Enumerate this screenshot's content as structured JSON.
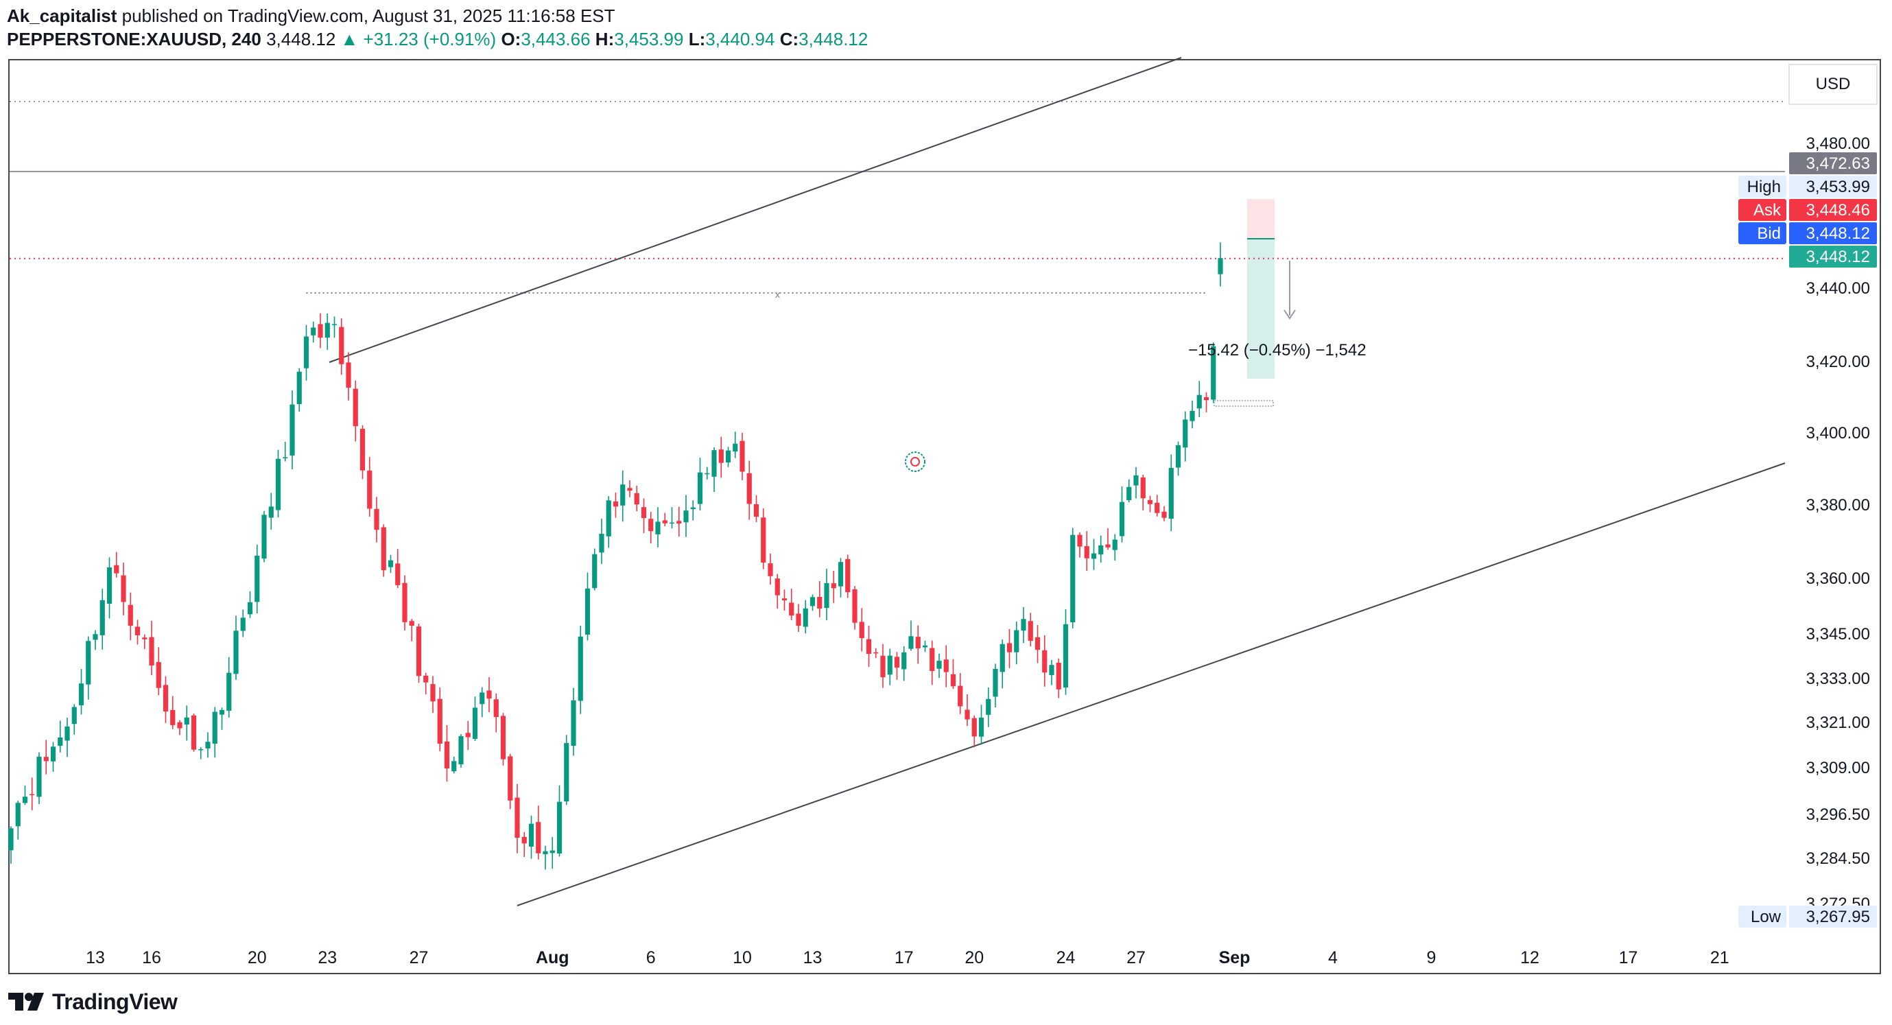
{
  "header": {
    "author": "Ak_capitalist",
    "published_text": "published on TradingView.com, August 31, 2025 11:16:58 EST",
    "symbol": "PEPPERSTONE:XAUUSD, 240",
    "last": "3,448.12",
    "change_arrow": "▲",
    "change": "+31.23 (+0.91%)",
    "o_label": "O:",
    "o": "3,443.66",
    "h_label": "H:",
    "h": "3,453.99",
    "l_label": "L:",
    "l": "3,440.94",
    "c_label": "C:",
    "c": "3,448.12"
  },
  "colors": {
    "up": "#089981",
    "down": "#f23645",
    "bid": "#2962ff",
    "ask": "#f23645",
    "last": "#22ab94",
    "grey_label": "#787b86",
    "frame": "#434651"
  },
  "footer": {
    "brand": "TradingView",
    "icon": "tradingview-logo-icon"
  },
  "chart_data": {
    "type": "candlestick",
    "currency": "USD",
    "y_ticks": [
      3480.0,
      3440.0,
      3420.0,
      3400.0,
      3380.0,
      3360.0,
      3345.0,
      3333.0,
      3321.0,
      3309.0,
      3296.5,
      3284.5,
      3272.5
    ],
    "y_tick_labels": [
      "3,480.00",
      "3,440.00",
      "3,420.00",
      "3,400.00",
      "3,380.00",
      "3,360.00",
      "3,345.00",
      "3,333.00",
      "3,321.00",
      "3,309.00",
      "3,296.50",
      "3,284.50",
      "3,272.50"
    ],
    "x_ticks": [
      {
        "label": "13",
        "bar": 12,
        "bold": false
      },
      {
        "label": "16",
        "bar": 20,
        "bold": false
      },
      {
        "label": "20",
        "bar": 35,
        "bold": false
      },
      {
        "label": "23",
        "bar": 45,
        "bold": false
      },
      {
        "label": "27",
        "bar": 58,
        "bold": false
      },
      {
        "label": "Aug",
        "bar": 77,
        "bold": true
      },
      {
        "label": "6",
        "bar": 91,
        "bold": false
      },
      {
        "label": "10",
        "bar": 104,
        "bold": false
      },
      {
        "label": "13",
        "bar": 114,
        "bold": false
      },
      {
        "label": "17",
        "bar": 127,
        "bold": false
      },
      {
        "label": "20",
        "bar": 137,
        "bold": false
      },
      {
        "label": "24",
        "bar": 150,
        "bold": false
      },
      {
        "label": "27",
        "bar": 160,
        "bold": false
      },
      {
        "label": "Sep",
        "bar": 174,
        "bold": true
      },
      {
        "label": "4",
        "bar": 188,
        "bold": false
      },
      {
        "label": "9",
        "bar": 202,
        "bold": false
      },
      {
        "label": "12",
        "bar": 216,
        "bold": false
      },
      {
        "label": "17",
        "bar": 230,
        "bold": false
      },
      {
        "label": "21",
        "bar": 243,
        "bold": false
      }
    ],
    "price_labels": [
      {
        "tag": "",
        "value": "3,472.63",
        "price": 3472.63,
        "kind": "grey"
      },
      {
        "tag": "High",
        "value": "3,453.99",
        "price": 3453.99,
        "kind": "plain"
      },
      {
        "tag": "Ask",
        "value": "3,448.46",
        "price": 3448.46,
        "kind": "ask"
      },
      {
        "tag": "Bid",
        "value": "3,448.12",
        "price": 3448.12,
        "kind": "bid"
      },
      {
        "tag": "",
        "value": "3,448.12",
        "price": 3448.12,
        "kind": "last"
      },
      {
        "tag": "Low",
        "value": "3,267.95",
        "price": 3267.95,
        "kind": "plain"
      }
    ],
    "measure_label": "−15.42 (−0.45%) −1,542",
    "anchors": [
      {
        "bar": 0,
        "price": 3297.0
      },
      {
        "bar": 8,
        "price": 3320.0
      },
      {
        "bar": 14,
        "price": 3362.0
      },
      {
        "bar": 18,
        "price": 3347.0
      },
      {
        "bar": 22,
        "price": 3324.0
      },
      {
        "bar": 28,
        "price": 3315.0
      },
      {
        "bar": 33,
        "price": 3349.0
      },
      {
        "bar": 38,
        "price": 3389.0
      },
      {
        "bar": 43,
        "price": 3431.0
      },
      {
        "bar": 46,
        "price": 3426.0
      },
      {
        "bar": 52,
        "price": 3372.0
      },
      {
        "bar": 58,
        "price": 3338.0
      },
      {
        "bar": 62,
        "price": 3307.0
      },
      {
        "bar": 68,
        "price": 3328.0
      },
      {
        "bar": 72,
        "price": 3294.0
      },
      {
        "bar": 77,
        "price": 3286.0
      },
      {
        "bar": 82,
        "price": 3360.0
      },
      {
        "bar": 86,
        "price": 3383.0
      },
      {
        "bar": 92,
        "price": 3372.0
      },
      {
        "bar": 96,
        "price": 3378.0
      },
      {
        "bar": 102,
        "price": 3398.0
      },
      {
        "bar": 105,
        "price": 3382.0
      },
      {
        "bar": 108,
        "price": 3357.0
      },
      {
        "bar": 113,
        "price": 3349.0
      },
      {
        "bar": 118,
        "price": 3361.0
      },
      {
        "bar": 124,
        "price": 3335.0
      },
      {
        "bar": 129,
        "price": 3341.0
      },
      {
        "bar": 134,
        "price": 3333.0
      },
      {
        "bar": 137,
        "price": 3316.0
      },
      {
        "bar": 141,
        "price": 3342.0
      },
      {
        "bar": 144,
        "price": 3346.0
      },
      {
        "bar": 149,
        "price": 3331.0
      },
      {
        "bar": 151,
        "price": 3371.0
      },
      {
        "bar": 155,
        "price": 3365.0
      },
      {
        "bar": 160,
        "price": 3386.0
      },
      {
        "bar": 164,
        "price": 3378.0
      },
      {
        "bar": 167,
        "price": 3403.0
      },
      {
        "bar": 170,
        "price": 3414.0
      },
      {
        "bar": 171,
        "price": 3411.0
      },
      {
        "bar": 172,
        "price": 3448.12
      }
    ],
    "annotations": {
      "upper_trendline": [
        {
          "bar": 43,
          "price": 3424.0
        },
        {
          "bar": 163,
          "price": 3492.0
        }
      ],
      "lower_trendline": [
        {
          "bar": 70,
          "price": 3271.0
        },
        {
          "bar": 246,
          "price": 3377.0
        }
      ],
      "resistance_line": 3473.5,
      "dotted_top_line": 3498.0,
      "dotted_red_line": 3448.0,
      "dotted_prev_high": {
        "price": 3438.5,
        "from_bar": 42,
        "to_bar": 170
      }
    }
  }
}
